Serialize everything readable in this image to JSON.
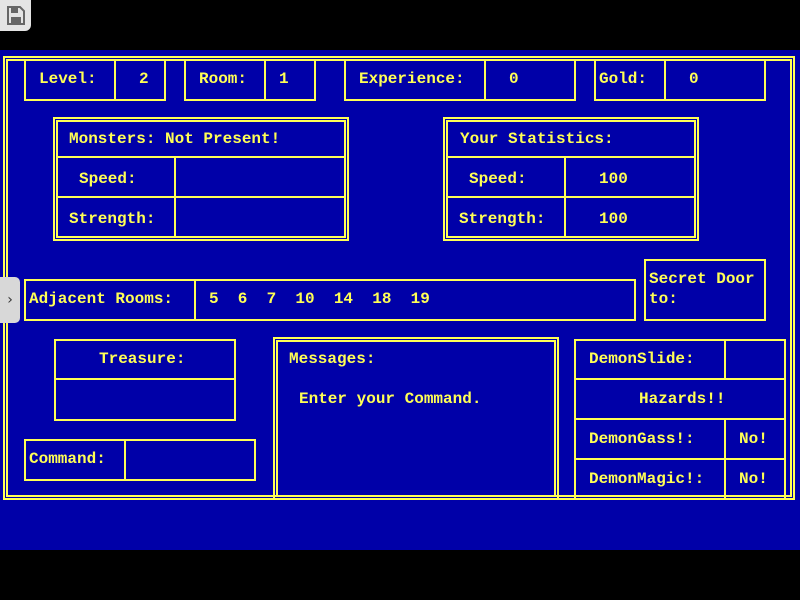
{
  "colors": {
    "background": "#0000a8",
    "text": "#ffff55"
  },
  "top_bar": {
    "level_label": "Level:",
    "level_value": "2",
    "room_label": "Room:",
    "room_value": "1",
    "experience_label": "Experience:",
    "experience_value": "0",
    "gold_label": "Gold:",
    "gold_value": "0"
  },
  "monsters": {
    "title": "Monsters: Not Present!",
    "speed_label": "Speed:",
    "speed_value": "",
    "strength_label": "Strength:",
    "strength_value": ""
  },
  "stats": {
    "title": "Your Statistics:",
    "speed_label": "Speed:",
    "speed_value": "100",
    "strength_label": "Strength:",
    "strength_value": "100"
  },
  "adjacent": {
    "label": "Adjacent Rooms:",
    "rooms": "5  6  7  10  14  18  19"
  },
  "secret_door": {
    "line1": "Secret Door",
    "line2": "to:"
  },
  "treasure": {
    "label": "Treasure:",
    "value": ""
  },
  "command": {
    "label": "Command:",
    "value": ""
  },
  "messages": {
    "title": "Messages:",
    "text": "Enter your Command."
  },
  "hazards": {
    "demonslide_label": "DemonSlide:",
    "demonslide_value": "",
    "title": "Hazards!!",
    "demongass_label": "DemonGass!:",
    "demongass_value": "No!",
    "demonmagic_label": "DemonMagic!:",
    "demonmagic_value": "No!"
  },
  "icons": {
    "save": "floppy-disk-icon",
    "side_tab": "chevron-right-icon"
  }
}
